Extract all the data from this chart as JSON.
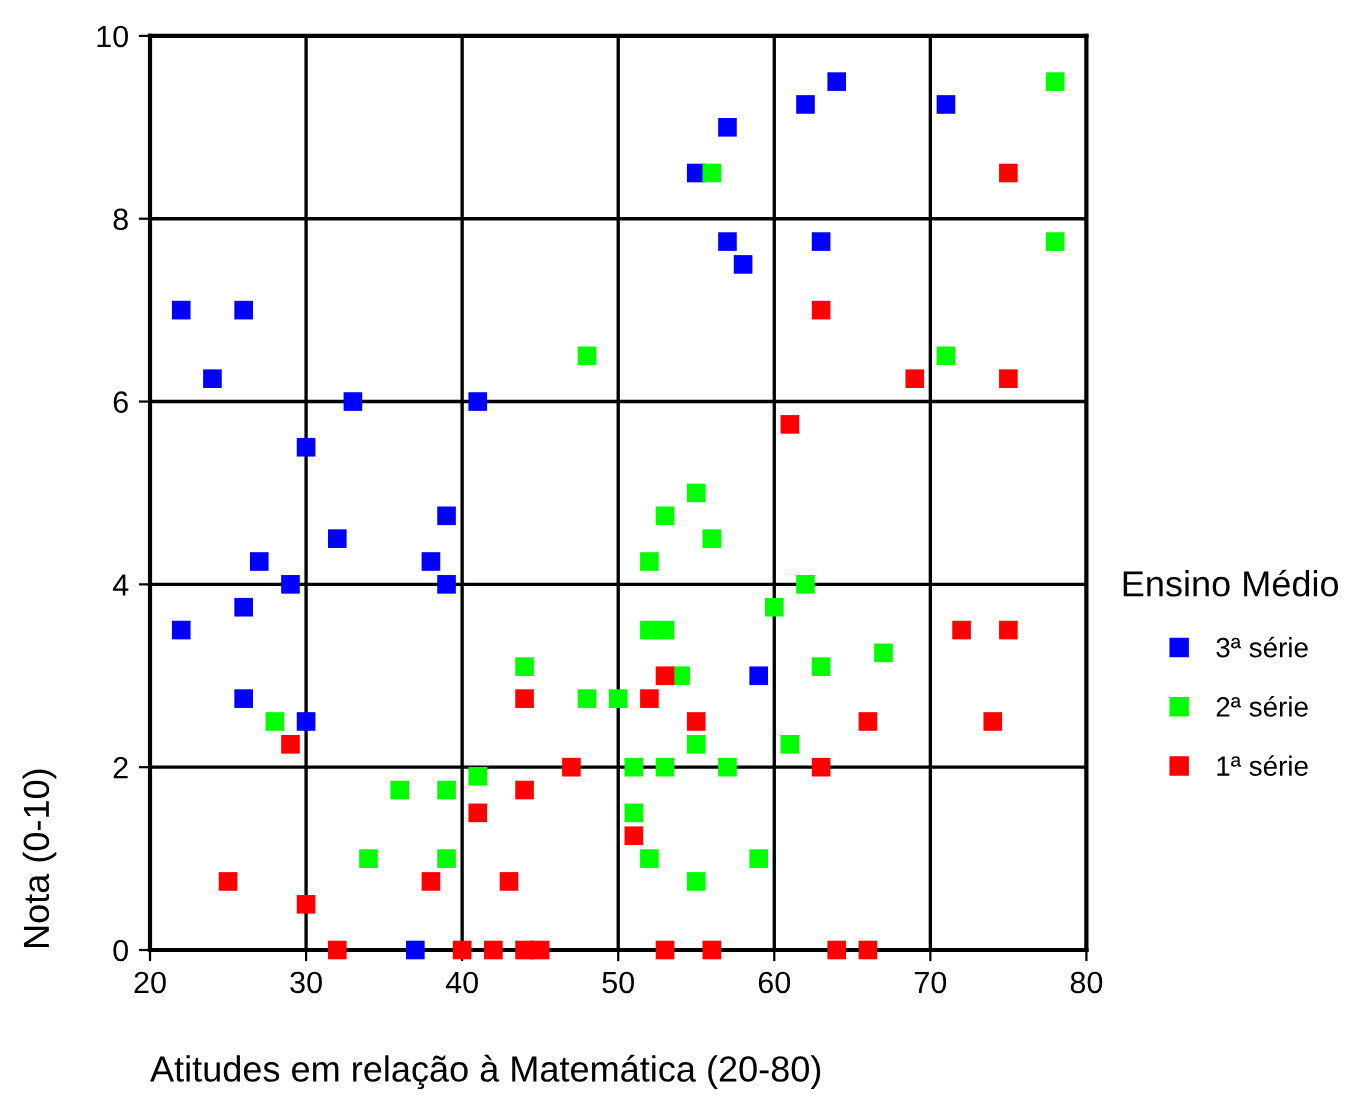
{
  "chart_data": {
    "type": "scatter",
    "xlabel": "Atitudes em relação à Matemática (20-80)",
    "ylabel": "Nota (0-10)",
    "legend_title": "Ensino Médio",
    "xlim": [
      20,
      80
    ],
    "xticks": [
      20,
      30,
      40,
      50,
      60,
      70,
      80
    ],
    "ylim": [
      0,
      10
    ],
    "yticks": [
      0,
      2,
      4,
      6,
      8,
      10
    ],
    "grid": true,
    "legend": "right",
    "marker": "square",
    "series": [
      {
        "name": "3ª série",
        "color": "#0000ff",
        "x": [
          22,
          26,
          24,
          33,
          41,
          30,
          39,
          32,
          27,
          38,
          29,
          39,
          26,
          22,
          26,
          30,
          37,
          64,
          62,
          71,
          57,
          55,
          57,
          58,
          63,
          59
        ],
        "values": [
          7,
          7,
          6.25,
          6,
          6,
          5.5,
          4.75,
          4.5,
          4.25,
          4.25,
          4,
          4,
          3.75,
          3.5,
          2.75,
          2.5,
          0,
          9.5,
          9.25,
          9.25,
          9,
          8.5,
          7.75,
          7.5,
          7.75,
          3
        ]
      },
      {
        "name": "2ª série",
        "color": "#00ff00",
        "x": [
          48,
          56,
          78,
          78,
          71,
          55,
          53,
          56,
          52,
          62,
          60,
          52,
          53,
          54,
          67,
          63,
          44,
          48,
          50,
          55,
          61,
          51,
          53,
          57,
          41,
          36,
          39,
          51,
          52,
          55,
          59,
          34,
          39,
          28
        ],
        "values": [
          6.5,
          8.5,
          9.5,
          7.75,
          6.5,
          5,
          4.75,
          4.5,
          4.25,
          4,
          3.75,
          3.5,
          3.5,
          3,
          3.25,
          3.1,
          3.1,
          2.75,
          2.75,
          2.25,
          2.25,
          2,
          2,
          2,
          1.9,
          1.75,
          1.75,
          1.5,
          1,
          0.75,
          1,
          1,
          1,
          2.5
        ]
      },
      {
        "name": "1ª série",
        "color": "#ff0000",
        "x": [
          75,
          63,
          69,
          75,
          61,
          72,
          75,
          53,
          52,
          44,
          55,
          66,
          74,
          29,
          47,
          63,
          44,
          51,
          41,
          25,
          38,
          43,
          30,
          32,
          40,
          42,
          44,
          45,
          53,
          56,
          64,
          66
        ],
        "values": [
          8.5,
          7,
          6.25,
          6.25,
          5.75,
          3.5,
          3.5,
          3,
          2.75,
          2.75,
          2.5,
          2.5,
          2.5,
          2.25,
          2,
          2,
          1.75,
          1.25,
          1.5,
          0.75,
          0.75,
          0.75,
          0.5,
          0,
          0,
          0,
          0,
          0,
          0,
          0,
          0,
          0
        ]
      }
    ]
  }
}
